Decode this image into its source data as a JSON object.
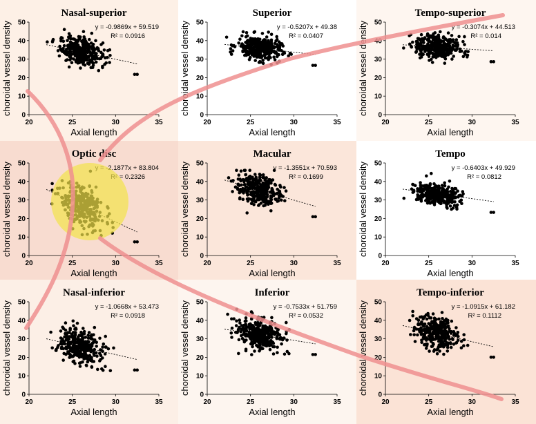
{
  "figure": {
    "x_label": "Axial length",
    "y_label": "choroidal vessel density",
    "colors": {
      "points": "#000000",
      "trend": "#000000",
      "highlight_ring": "#ef8f8f",
      "optic_disc": "#f2e34a"
    }
  },
  "chart_data": [
    {
      "type": "scatter",
      "title": "Nasal-superior",
      "equation": "y = -0.9869x + 59.519",
      "r2": "R² = 0.0916",
      "slope": -0.9869,
      "intercept": 59.519,
      "xlim": [
        20,
        35
      ],
      "ylim": [
        0,
        50
      ],
      "xticks": [
        20,
        25,
        30,
        35
      ],
      "yticks": [
        0,
        10,
        20,
        30,
        40,
        50
      ],
      "xlabel": "Axial length",
      "ylabel": "choroidal vessel density",
      "spread": 3.8,
      "background": "#fdf0e6"
    },
    {
      "type": "scatter",
      "title": "Superior",
      "equation": "y = -0.5207x + 49.38",
      "r2": "R² = 0.0407",
      "slope": -0.5207,
      "intercept": 49.38,
      "xlim": [
        20,
        35
      ],
      "ylim": [
        0,
        50
      ],
      "xticks": [
        20,
        25,
        30,
        35
      ],
      "yticks": [
        0,
        10,
        20,
        30,
        40,
        50
      ],
      "xlabel": "Axial length",
      "ylabel": "choroidal vessel density",
      "spread": 3.2,
      "background": "#ffffff"
    },
    {
      "type": "scatter",
      "title": "Tempo-superior",
      "equation": "y = -0.3074x + 44.513",
      "r2": "R² = 0.014",
      "slope": -0.3074,
      "intercept": 44.513,
      "xlim": [
        20,
        35
      ],
      "ylim": [
        0,
        50
      ],
      "xticks": [
        20,
        25,
        30,
        35
      ],
      "yticks": [
        0,
        10,
        20,
        30,
        40,
        50
      ],
      "xlabel": "Axial length",
      "ylabel": "choroidal vessel density",
      "spread": 3.2,
      "background": "#fef6f0"
    },
    {
      "type": "scatter",
      "title": "Optic disc",
      "equation": "y = -2.1877x + 83.804",
      "r2": "R² = 0.2326",
      "slope": -2.1877,
      "intercept": 83.804,
      "xlim": [
        20,
        35
      ],
      "ylim": [
        0,
        50
      ],
      "xticks": [
        20,
        25,
        30,
        35
      ],
      "yticks": [
        0,
        10,
        20,
        30,
        40,
        50
      ],
      "xlabel": "Axial length",
      "ylabel": "choroidal vessel density",
      "spread": 5.5,
      "background": "#f8dcd0"
    },
    {
      "type": "scatter",
      "title": "Macular",
      "equation": "y = -1.3551x + 70.593",
      "r2": "R² = 0.1699",
      "slope": -1.3551,
      "intercept": 70.593,
      "xlim": [
        20,
        35
      ],
      "ylim": [
        0,
        50
      ],
      "xticks": [
        20,
        25,
        30,
        35
      ],
      "yticks": [
        0,
        10,
        20,
        30,
        40,
        50
      ],
      "xlabel": "Axial length",
      "ylabel": "choroidal vessel density",
      "spread": 4.2,
      "background": "#fbe6da"
    },
    {
      "type": "scatter",
      "title": "Tempo",
      "equation": "y = -0.6403x + 49.929",
      "r2": "R² = 0.0812",
      "slope": -0.6403,
      "intercept": 49.929,
      "xlim": [
        20,
        35
      ],
      "ylim": [
        0,
        50
      ],
      "xticks": [
        20,
        25,
        30,
        35
      ],
      "yticks": [
        0,
        10,
        20,
        30,
        40,
        50
      ],
      "xlabel": "Axial length",
      "ylabel": "choroidal vessel density",
      "spread": 2.8,
      "background": "#ffffff"
    },
    {
      "type": "scatter",
      "title": "Nasal-inferior",
      "equation": "y = -1.0668x + 53.473",
      "r2": "R² = 0.0918",
      "slope": -1.0668,
      "intercept": 53.473,
      "xlim": [
        20,
        35
      ],
      "ylim": [
        0,
        50
      ],
      "xticks": [
        20,
        25,
        30,
        35
      ],
      "yticks": [
        0,
        10,
        20,
        30,
        40,
        50
      ],
      "xlabel": "Axial length",
      "ylabel": "choroidal vessel density",
      "spread": 4.5,
      "background": "#fcefe6"
    },
    {
      "type": "scatter",
      "title": "Inferior",
      "equation": "y = -0.7533x + 51.759",
      "r2": "R² = 0.0532",
      "slope": -0.7533,
      "intercept": 51.759,
      "xlim": [
        20,
        35
      ],
      "ylim": [
        0,
        50
      ],
      "xticks": [
        20,
        25,
        30,
        35
      ],
      "yticks": [
        0,
        10,
        20,
        30,
        40,
        50
      ],
      "xlabel": "Axial length",
      "ylabel": "choroidal vessel density",
      "spread": 4.2,
      "background": "#fdf5ef"
    },
    {
      "type": "scatter",
      "title": "Tempo-inferior",
      "equation": "y = -1.0915x + 61.182",
      "r2": "R² = 0.1112",
      "slope": -1.0915,
      "intercept": 61.182,
      "xlim": [
        20,
        35
      ],
      "ylim": [
        0,
        50
      ],
      "xticks": [
        20,
        25,
        30,
        35
      ],
      "yticks": [
        0,
        10,
        20,
        30,
        40,
        50
      ],
      "xlabel": "Axial length",
      "ylabel": "choroidal vessel density",
      "spread": 4.5,
      "background": "#fbe3d6"
    }
  ]
}
